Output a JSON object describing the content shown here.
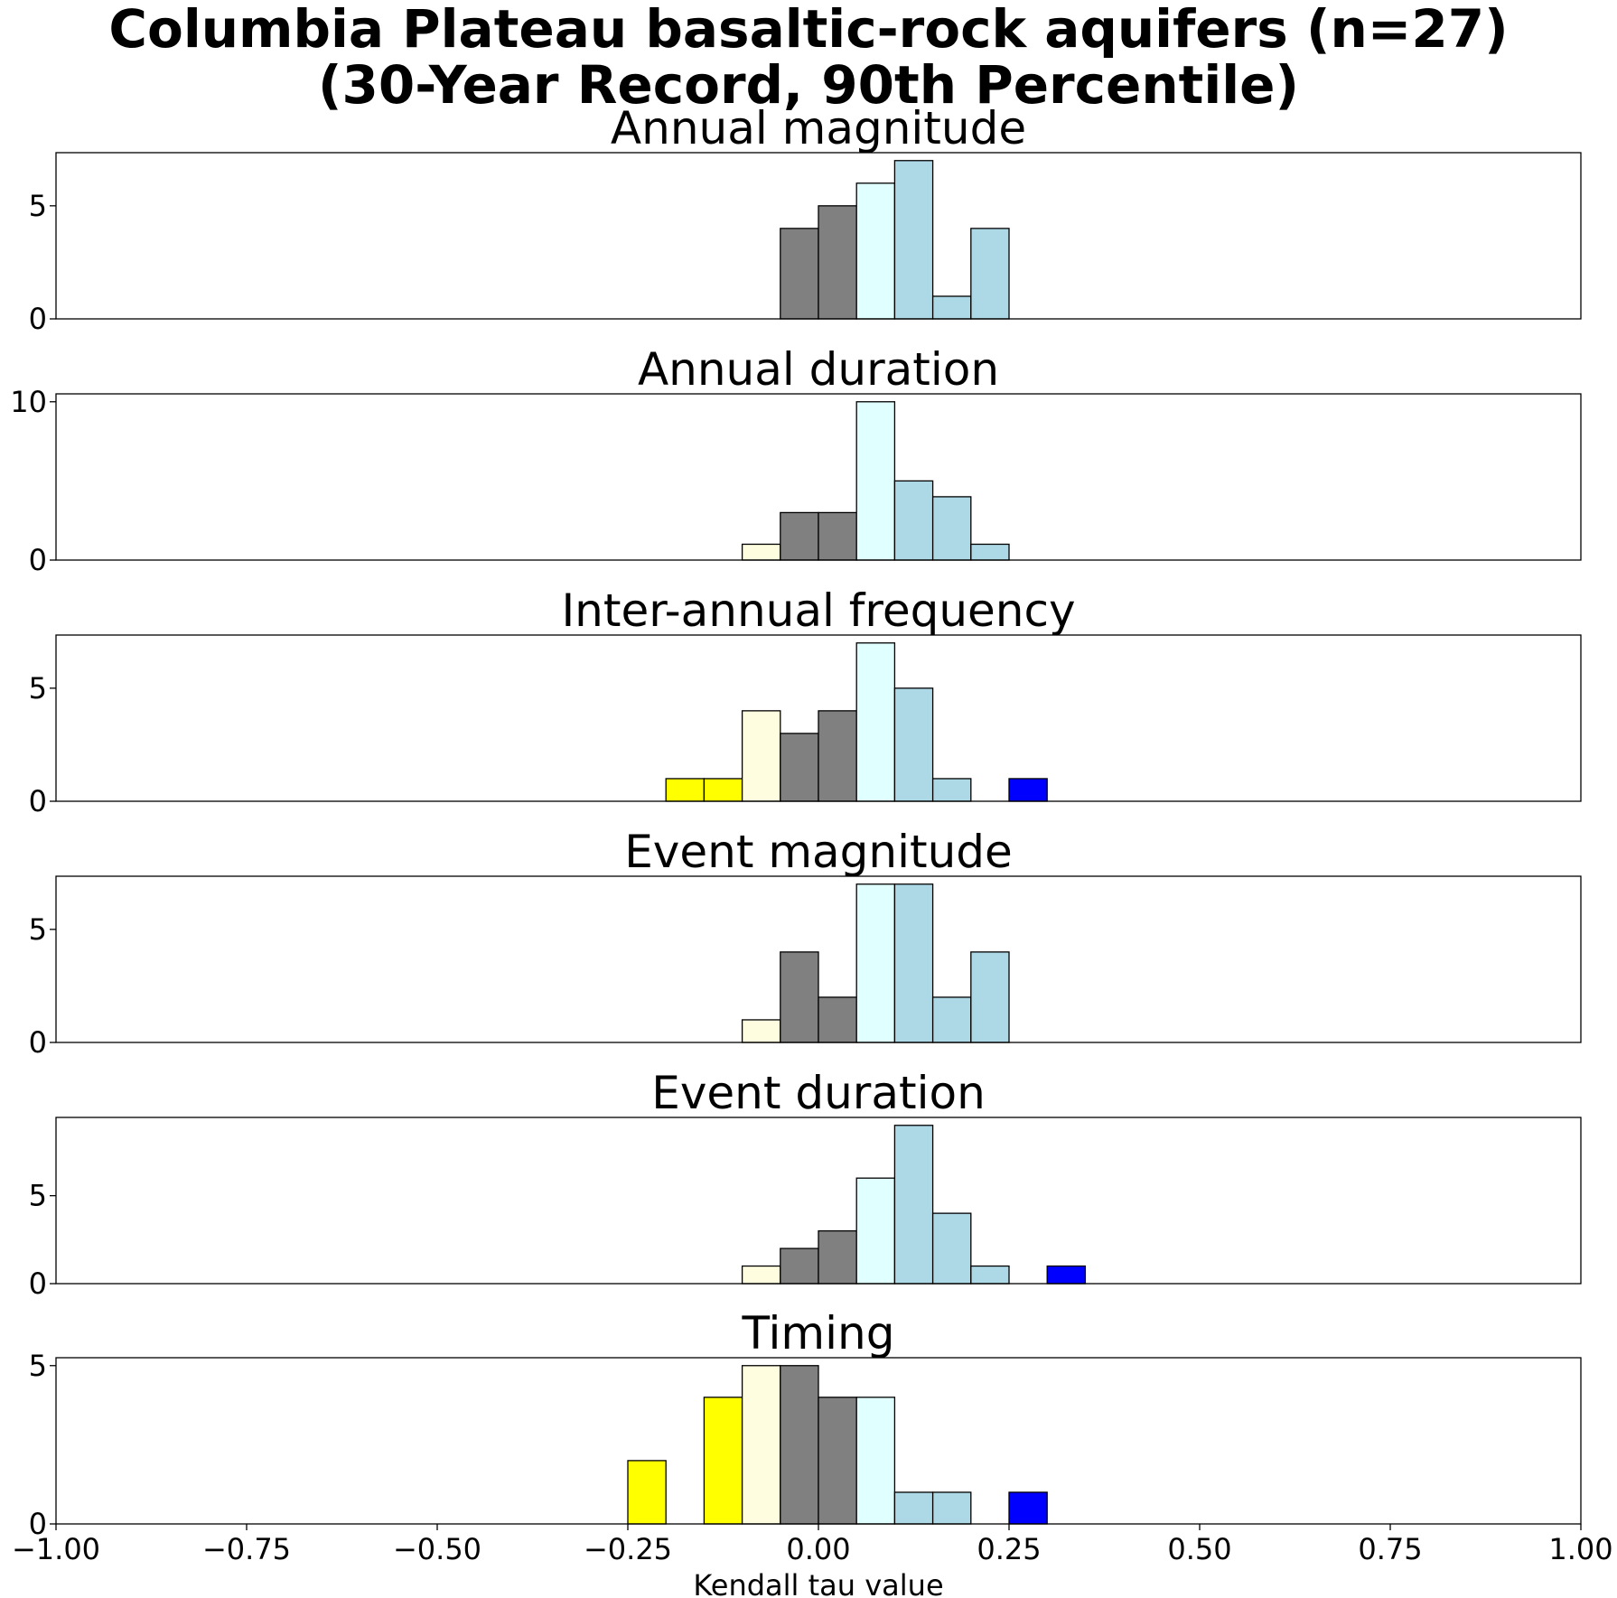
{
  "figure": {
    "title_line1": "Columbia Plateau basaltic-rock aquifers (n=27)",
    "title_line2": "(30-Year Record, 90th Percentile)"
  },
  "chart_data": {
    "type": "bar",
    "subtype": "histogram",
    "xlabel": "Kendall tau value",
    "xlim": [
      -1.0,
      1.0
    ],
    "xticks": [
      -1.0,
      -0.75,
      -0.5,
      -0.25,
      0.0,
      0.25,
      0.5,
      0.75,
      1.0
    ],
    "xtick_labels": [
      "−1.00",
      "−0.75",
      "−0.50",
      "−0.25",
      "0.00",
      "0.25",
      "0.50",
      "0.75",
      "1.00"
    ],
    "bin_width": 0.05,
    "bin_colors": {
      "strong_negative": "#ffff00",
      "weak_negative": "#fffde0",
      "neutral": "#808080",
      "weak_positive": "#e0ffff",
      "moderate_positive": "#add8e6",
      "strong_positive": "#0000ff"
    },
    "panels": [
      {
        "title": "Annual magnitude",
        "ylim": [
          0,
          7.35
        ],
        "yticks": [
          0,
          5
        ],
        "bins": [
          {
            "start": -0.05,
            "count": 4,
            "color": "#808080"
          },
          {
            "start": 0.0,
            "count": 5,
            "color": "#808080"
          },
          {
            "start": 0.05,
            "count": 6,
            "color": "#e0ffff"
          },
          {
            "start": 0.1,
            "count": 7,
            "color": "#add8e6"
          },
          {
            "start": 0.15,
            "count": 1,
            "color": "#add8e6"
          },
          {
            "start": 0.2,
            "count": 4,
            "color": "#add8e6"
          }
        ]
      },
      {
        "title": "Annual duration",
        "ylim": [
          0,
          10.5
        ],
        "yticks": [
          0,
          10
        ],
        "bins": [
          {
            "start": -0.1,
            "count": 1,
            "color": "#fffde0"
          },
          {
            "start": -0.05,
            "count": 3,
            "color": "#808080"
          },
          {
            "start": 0.0,
            "count": 3,
            "color": "#808080"
          },
          {
            "start": 0.05,
            "count": 10,
            "color": "#e0ffff"
          },
          {
            "start": 0.1,
            "count": 5,
            "color": "#add8e6"
          },
          {
            "start": 0.15,
            "count": 4,
            "color": "#add8e6"
          },
          {
            "start": 0.2,
            "count": 1,
            "color": "#add8e6"
          }
        ]
      },
      {
        "title": "Inter-annual frequency",
        "ylim": [
          0,
          7.35
        ],
        "yticks": [
          0,
          5
        ],
        "bins": [
          {
            "start": -0.2,
            "count": 1,
            "color": "#ffff00"
          },
          {
            "start": -0.15,
            "count": 1,
            "color": "#ffff00"
          },
          {
            "start": -0.1,
            "count": 4,
            "color": "#fffde0"
          },
          {
            "start": -0.05,
            "count": 3,
            "color": "#808080"
          },
          {
            "start": 0.0,
            "count": 4,
            "color": "#808080"
          },
          {
            "start": 0.05,
            "count": 7,
            "color": "#e0ffff"
          },
          {
            "start": 0.1,
            "count": 5,
            "color": "#add8e6"
          },
          {
            "start": 0.15,
            "count": 1,
            "color": "#add8e6"
          },
          {
            "start": 0.25,
            "count": 1,
            "color": "#0000ff"
          }
        ]
      },
      {
        "title": "Event magnitude",
        "ylim": [
          0,
          7.35
        ],
        "yticks": [
          0,
          5
        ],
        "bins": [
          {
            "start": -0.1,
            "count": 1,
            "color": "#fffde0"
          },
          {
            "start": -0.05,
            "count": 4,
            "color": "#808080"
          },
          {
            "start": 0.0,
            "count": 2,
            "color": "#808080"
          },
          {
            "start": 0.05,
            "count": 7,
            "color": "#e0ffff"
          },
          {
            "start": 0.1,
            "count": 7,
            "color": "#add8e6"
          },
          {
            "start": 0.15,
            "count": 2,
            "color": "#add8e6"
          },
          {
            "start": 0.2,
            "count": 4,
            "color": "#add8e6"
          }
        ]
      },
      {
        "title": "Event duration",
        "ylim": [
          0,
          9.45
        ],
        "yticks": [
          0,
          5
        ],
        "bins": [
          {
            "start": -0.1,
            "count": 1,
            "color": "#fffde0"
          },
          {
            "start": -0.05,
            "count": 2,
            "color": "#808080"
          },
          {
            "start": 0.0,
            "count": 3,
            "color": "#808080"
          },
          {
            "start": 0.05,
            "count": 6,
            "color": "#e0ffff"
          },
          {
            "start": 0.1,
            "count": 9,
            "color": "#add8e6"
          },
          {
            "start": 0.15,
            "count": 4,
            "color": "#add8e6"
          },
          {
            "start": 0.2,
            "count": 1,
            "color": "#add8e6"
          },
          {
            "start": 0.3,
            "count": 1,
            "color": "#0000ff"
          }
        ]
      },
      {
        "title": "Timing",
        "ylim": [
          0,
          5.25
        ],
        "yticks": [
          0,
          5
        ],
        "bins": [
          {
            "start": -0.25,
            "count": 2,
            "color": "#ffff00"
          },
          {
            "start": -0.15,
            "count": 4,
            "color": "#ffff00"
          },
          {
            "start": -0.1,
            "count": 5,
            "color": "#fffde0"
          },
          {
            "start": -0.05,
            "count": 5,
            "color": "#808080"
          },
          {
            "start": 0.0,
            "count": 4,
            "color": "#808080"
          },
          {
            "start": 0.05,
            "count": 4,
            "color": "#e0ffff"
          },
          {
            "start": 0.1,
            "count": 1,
            "color": "#add8e6"
          },
          {
            "start": 0.15,
            "count": 1,
            "color": "#add8e6"
          },
          {
            "start": 0.25,
            "count": 1,
            "color": "#0000ff"
          }
        ]
      }
    ]
  }
}
